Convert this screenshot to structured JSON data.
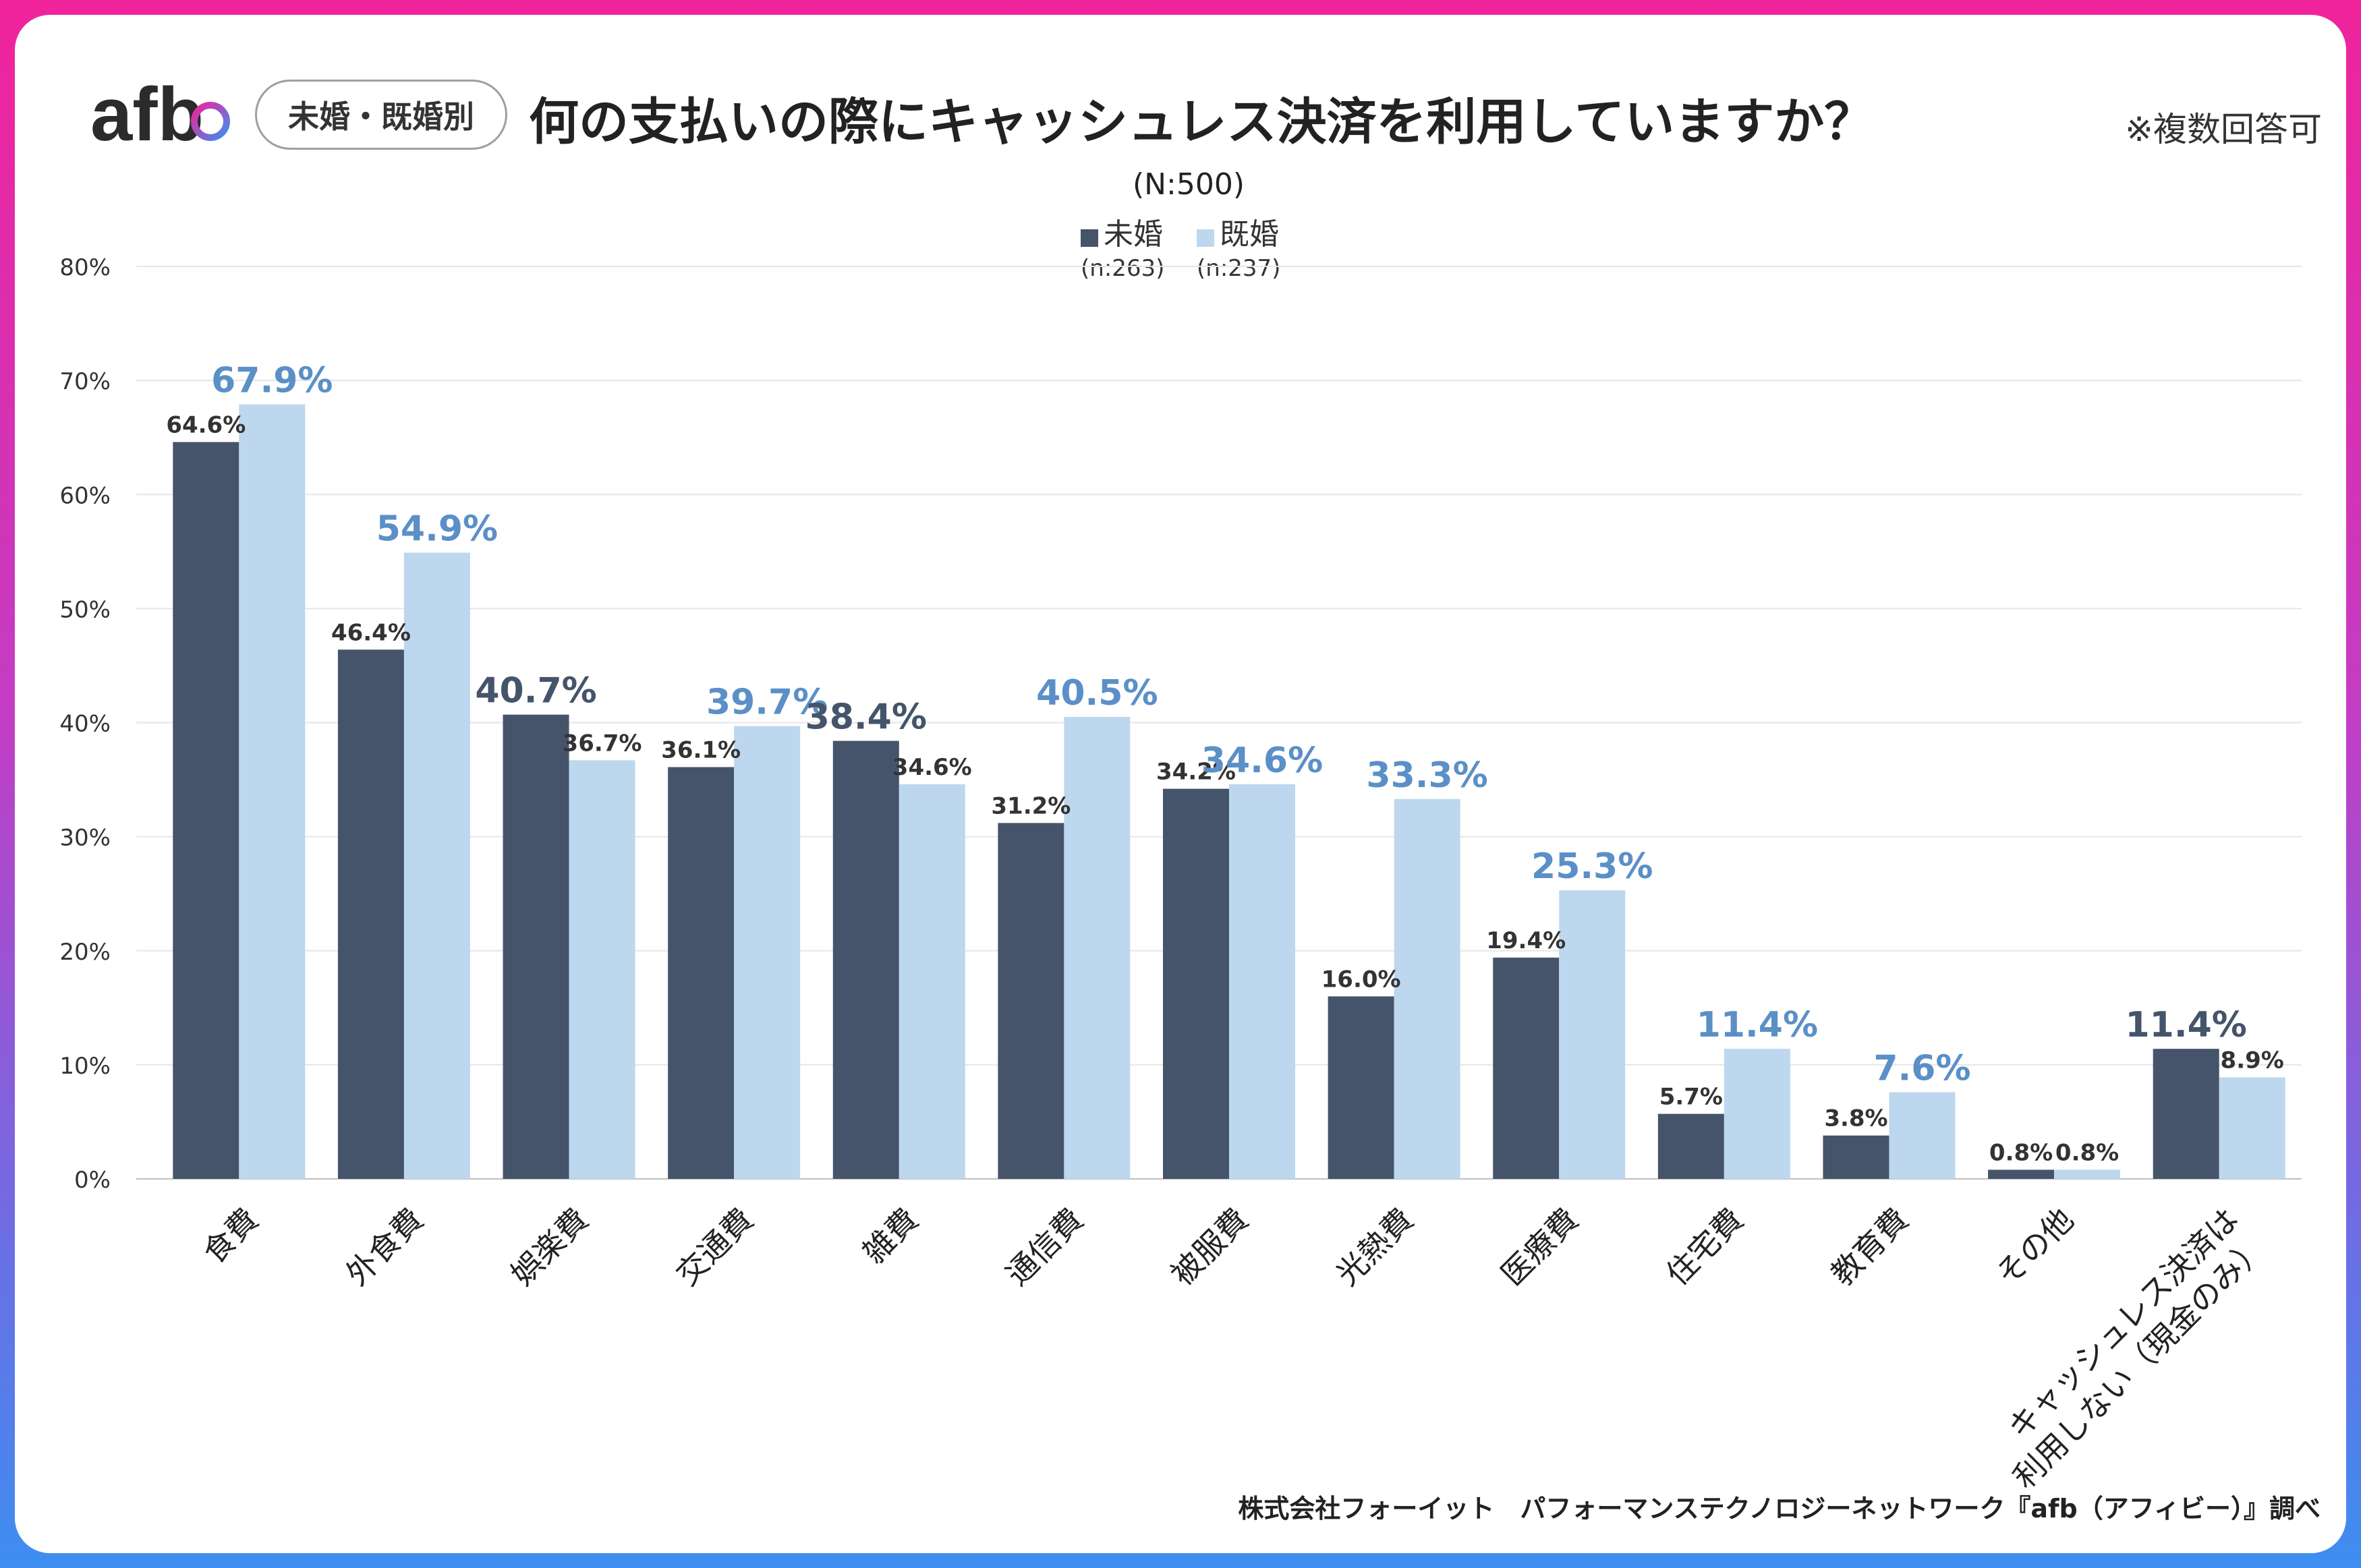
{
  "header": {
    "logo_text": "afb",
    "segment_tag": "未婚・既婚別",
    "title": "何の支払いの際にキャッシュレス決済を利用していますか？",
    "note": "※複数回答可",
    "sample_size": "(N:500)"
  },
  "legend": {
    "items": [
      {
        "name": "未婚",
        "n": "(n:263)",
        "color": "#45546a"
      },
      {
        "name": "既婚",
        "n": "(n:237)",
        "color": "#bdd7ee"
      }
    ]
  },
  "colors": {
    "unmarried": "#45546a",
    "married": "#bdd7ee",
    "highlight_married_text": "#5b8fc7",
    "highlight_unmarried_text": "#44546a",
    "grid": "#e6e6e6"
  },
  "chart_data": {
    "type": "bar",
    "title": "何の支払いの際にキャッシュレス決済を利用していますか？",
    "xlabel": "",
    "ylabel": "",
    "ylim": [
      0,
      80
    ],
    "yticks": [
      "0%",
      "10%",
      "20%",
      "30%",
      "40%",
      "50%",
      "60%",
      "70%",
      "80%"
    ],
    "grid": true,
    "legend_position": "top-center",
    "categories": [
      "食費",
      "外食費",
      "娯楽費",
      "交通費",
      "雑費",
      "通信費",
      "被服費",
      "光熱費",
      "医療費",
      "住宅費",
      "教育費",
      "その他",
      "キャッシュレス決済は\n利用しない（現金のみ）"
    ],
    "series": [
      {
        "name": "未婚",
        "values": [
          64.6,
          46.4,
          40.7,
          36.1,
          38.4,
          31.2,
          34.2,
          16.0,
          19.4,
          5.7,
          3.8,
          0.8,
          11.4
        ],
        "labels": [
          "64.6%",
          "46.4%",
          "40.7%",
          "36.1%",
          "38.4%",
          "31.2%",
          "34.2%",
          "16.0%",
          "19.4%",
          "5.7%",
          "3.8%",
          "0.8%",
          "11.4%"
        ]
      },
      {
        "name": "既婚",
        "values": [
          67.9,
          54.9,
          36.7,
          39.7,
          34.6,
          40.5,
          34.6,
          33.3,
          25.3,
          11.4,
          7.6,
          0.8,
          8.9
        ],
        "labels": [
          "67.9%",
          "54.9%",
          "36.7%",
          "39.7%",
          "34.6%",
          "40.5%",
          "34.6%",
          "33.3%",
          "25.3%",
          "11.4%",
          "7.6%",
          "0.8%",
          "8.9%"
        ]
      }
    ]
  },
  "footer": {
    "source": "株式会社フォーイット　パフォーマンステクノロジーネットワーク『afb（アフィビー）』調べ"
  }
}
